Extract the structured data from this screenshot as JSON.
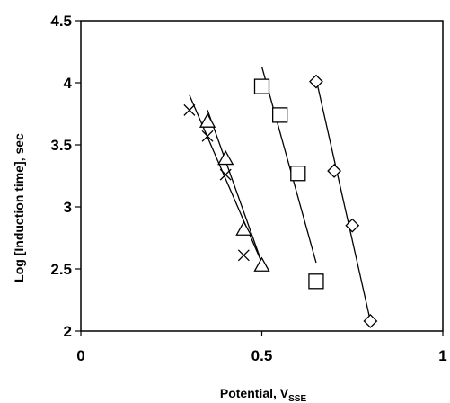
{
  "chart_data": {
    "type": "scatter",
    "title": "",
    "xlabel": "Potential, V",
    "xlabel_subscript": "SSE",
    "ylabel": "Log [Induction time], sec",
    "xlim": [
      0,
      1
    ],
    "ylim": [
      2,
      4.5
    ],
    "xticks": [
      0,
      0.5,
      1
    ],
    "xtick_labels": [
      "0",
      "0.5",
      "1"
    ],
    "yticks": [
      2,
      2.5,
      3,
      3.5,
      4,
      4.5
    ],
    "ytick_labels": [
      "2",
      "2.5",
      "3",
      "3.5",
      "4",
      "4.5"
    ],
    "grid": false,
    "legend": "none",
    "series": [
      {
        "marker": "cross",
        "x": [
          0.3,
          0.35,
          0.4,
          0.45
        ],
        "y": [
          3.78,
          3.57,
          3.26,
          2.61
        ],
        "fit": {
          "x": [
            0.3,
            0.5
          ],
          "y": [
            3.9,
            2.55
          ]
        }
      },
      {
        "marker": "triangle",
        "x": [
          0.35,
          0.4,
          0.45,
          0.5
        ],
        "y": [
          3.69,
          3.39,
          2.82,
          2.53
        ],
        "fit": {
          "x": [
            0.35,
            0.5
          ],
          "y": [
            3.78,
            2.55
          ]
        }
      },
      {
        "marker": "square",
        "x": [
          0.5,
          0.55,
          0.6,
          0.65
        ],
        "y": [
          3.97,
          3.74,
          3.27,
          2.4
        ],
        "fit": {
          "x": [
            0.5,
            0.65
          ],
          "y": [
            4.13,
            2.55
          ]
        }
      },
      {
        "marker": "diamond",
        "x": [
          0.65,
          0.7,
          0.75,
          0.8
        ],
        "y": [
          4.01,
          3.29,
          2.85,
          2.08
        ],
        "fit": {
          "x": [
            0.65,
            0.8
          ],
          "y": [
            4.03,
            2.08
          ]
        }
      }
    ]
  }
}
